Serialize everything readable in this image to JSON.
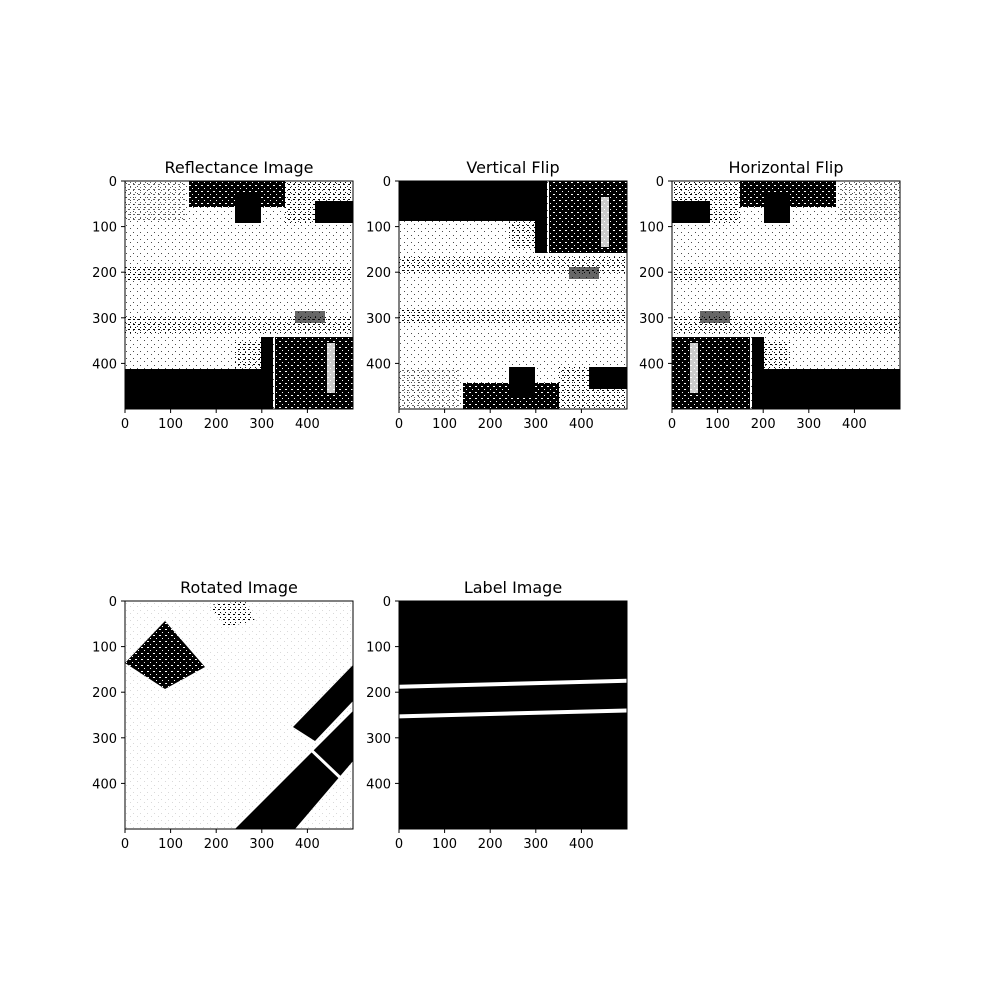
{
  "colors": {
    "background": "#ffffff",
    "foreground": "#000000",
    "image_black": "#000000",
    "image_white": "#ffffff"
  },
  "chart_data": [
    {
      "type": "image",
      "title": "Reflectance Image",
      "colormap": "binary (black / white)",
      "xlim": [
        0,
        500
      ],
      "ylim": [
        500,
        0
      ],
      "xticks": [
        0,
        100,
        200,
        300,
        400
      ],
      "yticks": [
        0,
        100,
        200,
        300,
        400
      ],
      "description": "Thresholded road reflectance: mostly white, black blocks at top (x 140-350, y 0-90) and large black region at bottom (y 340-500), speckle throughout"
    },
    {
      "type": "image",
      "title": "Vertical Flip",
      "colormap": "binary (black / white)",
      "xlim": [
        0,
        500
      ],
      "ylim": [
        500,
        0
      ],
      "xticks": [
        0,
        100,
        200,
        300,
        400
      ],
      "yticks": [
        0,
        100,
        200,
        300,
        400
      ],
      "description": "Reflectance image flipped top-to-bottom: large black region at top (y 0-160), blocks at bottom"
    },
    {
      "type": "image",
      "title": "Horizontal Flip",
      "colormap": "binary (black / white)",
      "xlim": [
        0,
        500
      ],
      "ylim": [
        500,
        0
      ],
      "xticks": [
        0,
        100,
        200,
        300,
        400
      ],
      "yticks": [
        0,
        100,
        200,
        300,
        400
      ],
      "description": "Reflectance image mirrored left-to-right: black blocks at top-left, large black region bottom-left"
    },
    {
      "type": "image",
      "title": "Rotated Image",
      "colormap": "binary (black / white)",
      "xlim": [
        0,
        500
      ],
      "ylim": [
        500,
        0
      ],
      "xticks": [
        0,
        100,
        200,
        300,
        400
      ],
      "yticks": [
        0,
        100,
        200,
        300,
        400
      ],
      "description": "Reflectance image rotated ~45 degrees: white background, black diagonal band at lower right and dark cluster at upper left"
    },
    {
      "type": "image",
      "title": "Label Image",
      "colormap": "binary (black / white)",
      "xlim": [
        0,
        500
      ],
      "ylim": [
        500,
        0
      ],
      "xticks": [
        0,
        100,
        200,
        300,
        400
      ],
      "yticks": [
        0,
        100,
        200,
        300,
        400
      ],
      "description": "Black background with two thin white lane lines running slightly upward left to right",
      "lines": [
        {
          "x": [
            0,
            500
          ],
          "y": [
            188,
            175
          ]
        },
        {
          "x": [
            0,
            500
          ],
          "y": [
            253,
            240
          ]
        }
      ]
    }
  ]
}
